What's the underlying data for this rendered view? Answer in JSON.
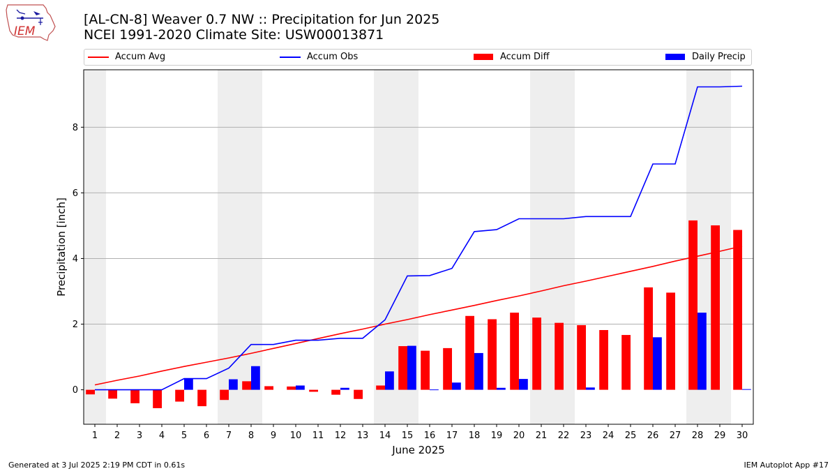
{
  "header": {
    "title_line1": "[AL-CN-8] Weaver 0.7 NW :: Precipitation for Jun 2025",
    "title_line2": "NCEI 1991-2020 Climate Site: USW00013871",
    "logo_text": "IEM"
  },
  "footer": {
    "generated": "Generated at 3 Jul 2025 2:19 PM CDT in 0.61s",
    "app": "IEM Autoplot App #17"
  },
  "colors": {
    "avg": "#ff0000",
    "obs": "#0000ff",
    "diff": "#ff0000",
    "daily": "#0000ff",
    "weekend": "#eeeeee",
    "grid": "#b0b0b0"
  },
  "chart_data": {
    "type": "bar",
    "xlabel": "June 2025",
    "ylabel": "Precipitation [inch]",
    "xlim": [
      0.5,
      30.5
    ],
    "ylim": [
      -1.05,
      9.75
    ],
    "yticks": [
      0,
      2,
      4,
      6,
      8
    ],
    "x": [
      1,
      2,
      3,
      4,
      5,
      6,
      7,
      8,
      9,
      10,
      11,
      12,
      13,
      14,
      15,
      16,
      17,
      18,
      19,
      20,
      21,
      22,
      23,
      24,
      25,
      26,
      27,
      28,
      29,
      30
    ],
    "weekend_days": [
      1,
      7,
      8,
      14,
      15,
      21,
      22,
      28,
      29
    ],
    "grid": "y",
    "legend": "top",
    "series": [
      {
        "name": "Accum Avg",
        "kind": "line",
        "values": [
          0.15,
          0.29,
          0.42,
          0.57,
          0.71,
          0.84,
          0.97,
          1.11,
          1.26,
          1.41,
          1.56,
          1.71,
          1.85,
          2.0,
          2.14,
          2.29,
          2.43,
          2.57,
          2.72,
          2.86,
          3.01,
          3.17,
          3.31,
          3.46,
          3.61,
          3.76,
          3.92,
          4.07,
          4.22,
          4.38
        ]
      },
      {
        "name": "Accum Obs",
        "kind": "line",
        "values": [
          0.0,
          0.0,
          0.0,
          0.0,
          0.34,
          0.34,
          0.66,
          1.38,
          1.38,
          1.51,
          1.51,
          1.57,
          1.57,
          2.13,
          3.47,
          3.48,
          3.7,
          4.82,
          4.88,
          5.21,
          5.21,
          5.21,
          5.28,
          5.28,
          5.28,
          6.88,
          6.88,
          9.23,
          9.23,
          9.25
        ]
      },
      {
        "name": "Accum Diff",
        "kind": "bar",
        "values": [
          -0.14,
          -0.27,
          -0.41,
          -0.56,
          -0.36,
          -0.5,
          -0.31,
          0.26,
          0.11,
          0.1,
          -0.06,
          -0.15,
          -0.28,
          0.13,
          1.33,
          1.19,
          1.27,
          2.25,
          2.15,
          2.35,
          2.2,
          2.04,
          1.97,
          1.82,
          1.67,
          3.12,
          2.96,
          5.16,
          5.01,
          4.87
        ]
      },
      {
        "name": "Daily Precip",
        "kind": "bar",
        "values": [
          0.0,
          0.0,
          0.0,
          0.0,
          0.34,
          0.0,
          0.32,
          0.72,
          0.0,
          0.13,
          0.0,
          0.06,
          0.0,
          0.56,
          1.34,
          0.01,
          0.22,
          1.12,
          0.06,
          0.33,
          0.0,
          0.0,
          0.07,
          0.0,
          0.0,
          1.6,
          0.0,
          2.35,
          0.0,
          0.02
        ]
      }
    ]
  }
}
